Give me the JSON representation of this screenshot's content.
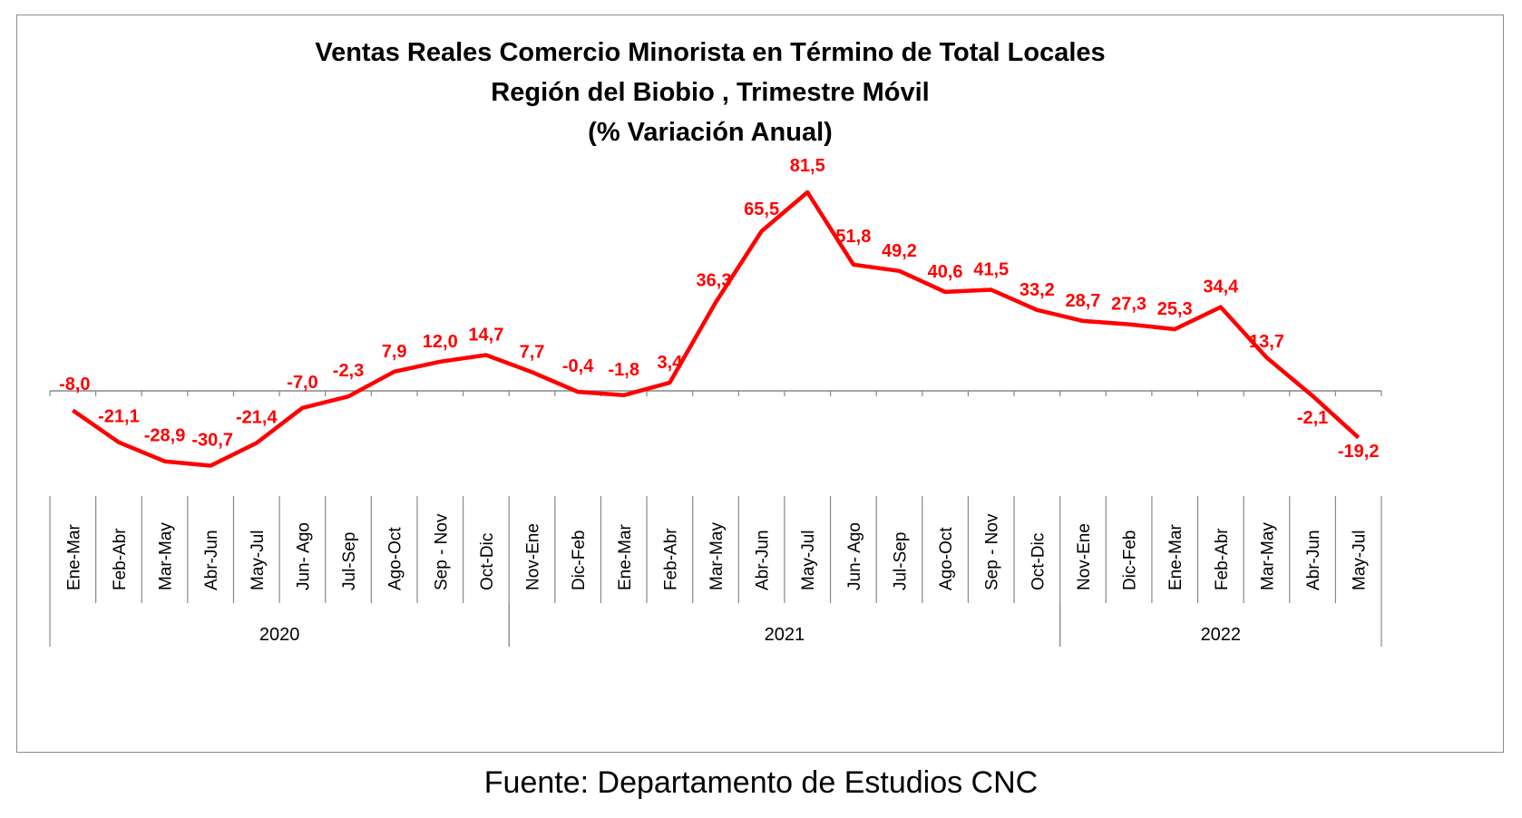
{
  "title_lines": [
    "Ventas Reales Comercio Minorista  en Término de Total Locales",
    "Región del Biobio , Trimestre Móvil",
    "(% Variación Anual)"
  ],
  "source": "Fuente: Departamento de Estudios CNC",
  "chart_data": {
    "type": "line",
    "title": "Ventas Reales Comercio Minorista  en Término de Total Locales",
    "subtitle": "Región del Biobio , Trimestre Móvil",
    "ylabel": "(% Variación Anual)",
    "xlabel": "",
    "ylim": [
      -40,
      90
    ],
    "grid": false,
    "legend": "none",
    "line_color": "#ff0000",
    "categories": [
      "Ene-Mar",
      "Feb-Abr",
      "Mar-May",
      "Abr-Jun",
      "May-Jul",
      "Jun- Ago",
      "Jul-Sep",
      "Ago-Oct",
      "Sep - Nov",
      "Oct-Dic",
      "Nov-Ene",
      "Dic-Feb",
      "Ene-Mar",
      "Feb-Abr",
      "Mar-May",
      "Abr-Jun",
      "May-Jul",
      "Jun- Ago",
      "Jul-Sep",
      "Ago-Oct",
      "Sep - Nov",
      "Oct-Dic",
      "Nov-Ene",
      "Dic-Feb",
      "Ene-Mar",
      "Feb-Abr",
      "Mar-May",
      "Abr-Jun",
      "May-Jul"
    ],
    "years": [
      {
        "label": "2020",
        "start": 0,
        "end": 9
      },
      {
        "label": "2021",
        "start": 10,
        "end": 21
      },
      {
        "label": "2022",
        "start": 22,
        "end": 28
      }
    ],
    "values": [
      -8.0,
      -21.1,
      -28.9,
      -30.7,
      -21.4,
      -7.0,
      -2.3,
      7.9,
      12.0,
      14.7,
      7.7,
      -0.4,
      -1.8,
      3.4,
      36.3,
      65.5,
      81.5,
      51.8,
      49.2,
      40.6,
      41.5,
      33.2,
      28.7,
      27.3,
      25.3,
      34.4,
      13.7,
      -2.1,
      -19.2
    ],
    "labels": [
      "-8,0",
      "-21,1",
      "-28,9",
      "-30,7",
      "-21,4",
      "-7,0",
      "-2,3",
      "7,9",
      "12,0",
      "14,7",
      "7,7",
      "-0,4",
      "-1,8",
      "3,4",
      "36,3",
      "65,5",
      "81,5",
      "51,8",
      "49,2",
      "40,6",
      "41,5",
      "33,2",
      "28,7",
      "27,3",
      "25,3",
      "34,4",
      "13,7",
      "-2,1",
      "-19,2"
    ]
  }
}
